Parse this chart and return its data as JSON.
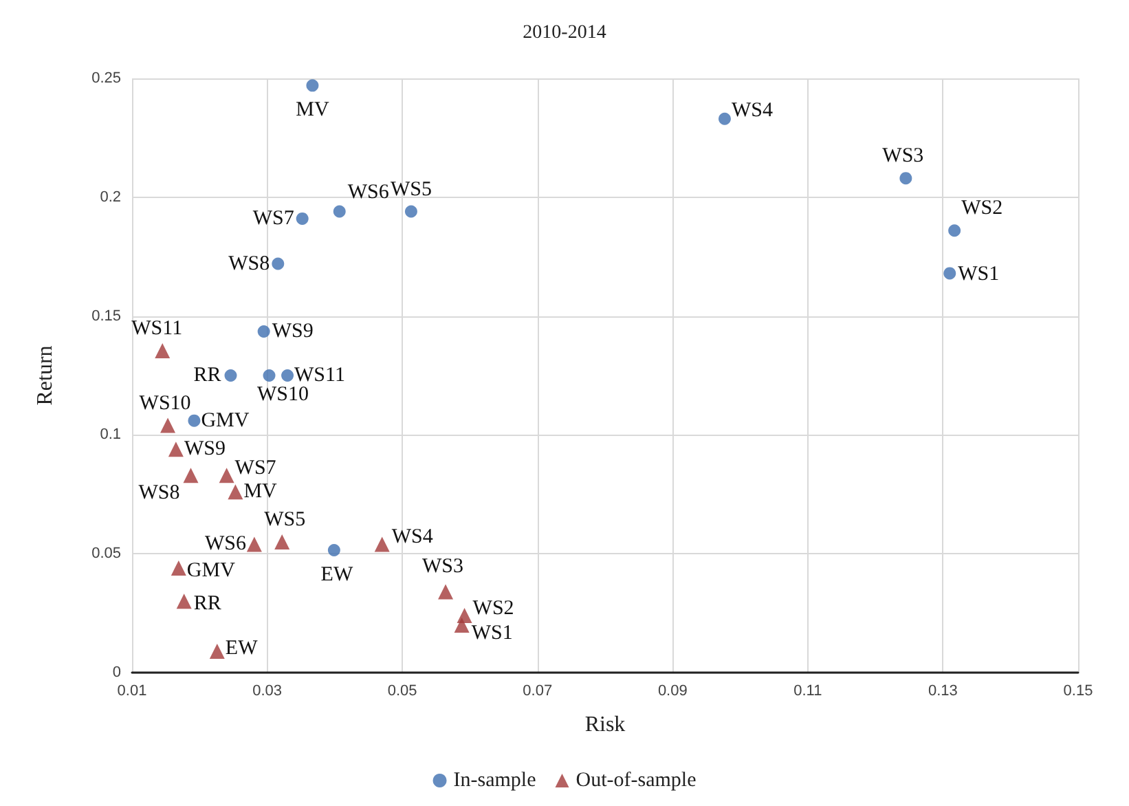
{
  "chart_data": {
    "type": "scatter",
    "title": "2010-2014",
    "xlabel": "Risk",
    "ylabel": "Return",
    "series": [
      {
        "name": "In-sample",
        "color": "#3f6fb0",
        "marker": "circle",
        "x": [
          0.0367,
          0.0977,
          0.1245,
          0.1317,
          0.131,
          0.0407,
          0.0513,
          0.0352,
          0.0316,
          0.0295,
          0.0246,
          0.0303,
          0.033,
          0.0192,
          0.0399
        ],
        "values": [
          0.247,
          0.233,
          0.208,
          0.186,
          0.168,
          0.194,
          0.194,
          0.191,
          0.172,
          0.1435,
          0.125,
          0.125,
          0.125,
          0.106,
          0.0515
        ]
      },
      {
        "name": "Out-of-sample",
        "color": "#a33a3a",
        "marker": "triangle",
        "x": [
          0.0145,
          0.0153,
          0.0165,
          0.0187,
          0.024,
          0.0253,
          0.0281,
          0.0322,
          0.047,
          0.0169,
          0.0177,
          0.0226,
          0.0564,
          0.0592,
          0.0588
        ],
        "values": [
          0.1354,
          0.104,
          0.094,
          0.083,
          0.083,
          0.076,
          0.054,
          0.055,
          0.054,
          0.044,
          0.03,
          0.009,
          0.034,
          0.024,
          0.02
        ]
      }
    ],
    "annotations": [
      {
        "text": "MV",
        "x": 0.0367,
        "y": 0.247
      },
      {
        "text": "WS4",
        "x": 0.0977,
        "y": 0.233
      },
      {
        "text": "WS3",
        "x": 0.1245,
        "y": 0.208
      },
      {
        "text": "WS2",
        "x": 0.1317,
        "y": 0.186
      },
      {
        "text": "WS1",
        "x": 0.131,
        "y": 0.168
      },
      {
        "text": "WS6",
        "x": 0.0407,
        "y": 0.194
      },
      {
        "text": "WS5",
        "x": 0.0513,
        "y": 0.194
      },
      {
        "text": "WS7",
        "x": 0.0352,
        "y": 0.191
      },
      {
        "text": "WS8",
        "x": 0.0316,
        "y": 0.172
      },
      {
        "text": "WS9",
        "x": 0.0295,
        "y": 0.1435
      },
      {
        "text": "RR",
        "x": 0.0246,
        "y": 0.125
      },
      {
        "text": "WS10",
        "x": 0.0303,
        "y": 0.125
      },
      {
        "text": "WS11",
        "x": 0.033,
        "y": 0.125
      },
      {
        "text": "GMV",
        "x": 0.0192,
        "y": 0.106
      },
      {
        "text": "EW",
        "x": 0.0399,
        "y": 0.0515
      },
      {
        "text": "WS11",
        "x": 0.0145,
        "y": 0.1354
      },
      {
        "text": "WS10",
        "x": 0.0153,
        "y": 0.104
      },
      {
        "text": "WS9",
        "x": 0.0165,
        "y": 0.094
      },
      {
        "text": "WS8",
        "x": 0.0187,
        "y": 0.083
      },
      {
        "text": "WS7",
        "x": 0.024,
        "y": 0.083
      },
      {
        "text": "MV",
        "x": 0.0253,
        "y": 0.076
      },
      {
        "text": "WS6",
        "x": 0.0281,
        "y": 0.054
      },
      {
        "text": "WS5",
        "x": 0.0322,
        "y": 0.055
      },
      {
        "text": "WS4",
        "x": 0.047,
        "y": 0.054
      },
      {
        "text": "GMV",
        "x": 0.0169,
        "y": 0.044
      },
      {
        "text": "RR",
        "x": 0.0177,
        "y": 0.03
      },
      {
        "text": "EW",
        "x": 0.0226,
        "y": 0.009
      },
      {
        "text": "WS3",
        "x": 0.0564,
        "y": 0.034
      },
      {
        "text": "WS2",
        "x": 0.0592,
        "y": 0.024
      },
      {
        "text": "WS1",
        "x": 0.0588,
        "y": 0.02
      }
    ],
    "xlim": [
      0.01,
      0.15
    ],
    "xticks": [
      0.01,
      0.03,
      0.05,
      0.07,
      0.09,
      0.11,
      0.13,
      0.15
    ],
    "ylim": [
      0,
      0.25
    ],
    "yticks": [
      0,
      0.05,
      0.1,
      0.15,
      0.2,
      0.25
    ],
    "grid": true,
    "legend": "bottom"
  }
}
